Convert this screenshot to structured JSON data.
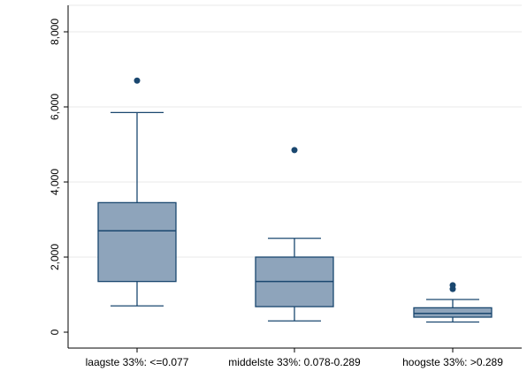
{
  "chart_data": {
    "type": "box",
    "title": "",
    "xlabel": "",
    "ylabel": "",
    "ylim": [
      -250,
      8000
    ],
    "yticks": [
      0,
      2000,
      4000,
      6000,
      8000
    ],
    "ytick_labels": [
      "0",
      "2,000",
      "4,000",
      "6,000",
      "8,000"
    ],
    "grid": true,
    "categories": [
      "laagste 33%: <=0.077",
      "middelste 33%: 0.078-0.289",
      "hoogste 33%: >0.289"
    ],
    "boxes": [
      {
        "category": "laagste 33%: <=0.077",
        "whisker_low": 700,
        "q1": 1350,
        "median": 2700,
        "q3": 3450,
        "whisker_high": 5850,
        "outliers": [
          6700
        ]
      },
      {
        "category": "middelste 33%: 0.078-0.289",
        "whisker_low": 300,
        "q1": 680,
        "median": 1350,
        "q3": 2000,
        "whisker_high": 2500,
        "outliers": [
          4850
        ]
      },
      {
        "category": "hoogste 33%: >0.289",
        "whisker_low": 270,
        "q1": 400,
        "median": 500,
        "q3": 650,
        "whisker_high": 870,
        "outliers": [
          1250,
          1150
        ]
      }
    ],
    "colors": {
      "box_fill": "#8ea4bb",
      "box_stroke": "#1a476f",
      "outlier": "#1a476f",
      "grid": "#eaeaea",
      "axis": "#000000"
    }
  }
}
